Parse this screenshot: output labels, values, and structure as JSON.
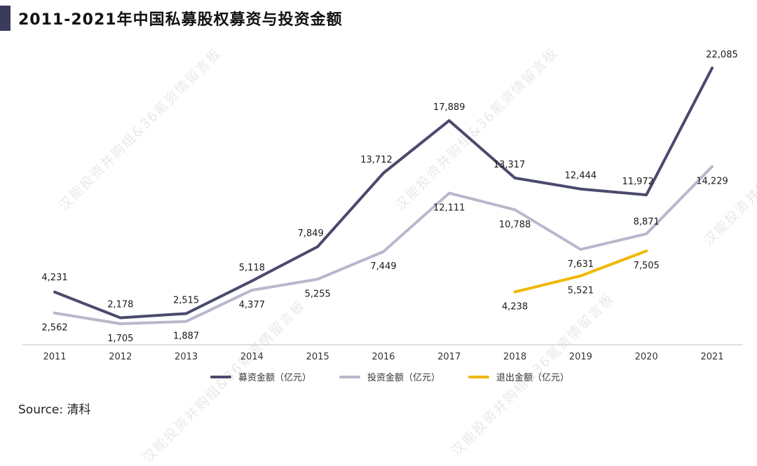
{
  "header": {
    "title": "2011-2021年中国私募股权募资与投资金额"
  },
  "footer": {
    "source": "Source: 清科"
  },
  "watermarks": [
    "汉能投资并购组&36氪资情留言板"
  ],
  "colors": {
    "series1": "#4a4a6e",
    "series2": "#b8b8cc",
    "series3": "#f0b800"
  },
  "chart_data": {
    "type": "line",
    "x": [
      "2011",
      "2012",
      "2013",
      "2014",
      "2015",
      "2016",
      "2017",
      "2018",
      "2019",
      "2020",
      "2021"
    ],
    "series": [
      {
        "name": "募资金额（亿元）",
        "values": [
          4231,
          2178,
          2515,
          5118,
          7849,
          13712,
          17889,
          13317,
          12444,
          11972,
          22085
        ]
      },
      {
        "name": "投资金额（亿元）",
        "values": [
          2562,
          1705,
          1887,
          4377,
          5255,
          7449,
          12111,
          10788,
          7631,
          8871,
          14229
        ]
      },
      {
        "name": "退出金额（亿元）",
        "values": [
          null,
          null,
          null,
          null,
          null,
          null,
          null,
          4238,
          5521,
          7505,
          null
        ]
      }
    ],
    "labels": [
      [
        "4,231",
        "2,178",
        "2,515",
        "5,118",
        "7,849",
        "13,712",
        "17,889",
        "13,317",
        "12,444",
        "11,972",
        "22,085"
      ],
      [
        "2,562",
        "1,705",
        "1,887",
        "4,377",
        "5,255",
        "7,449",
        "12,111",
        "10,788",
        "7,631",
        "8,871",
        "14,229"
      ],
      [
        null,
        null,
        null,
        null,
        null,
        null,
        null,
        "4,238",
        "5,521",
        "7,505",
        null
      ]
    ],
    "legend": "bottom",
    "grid": false
  }
}
